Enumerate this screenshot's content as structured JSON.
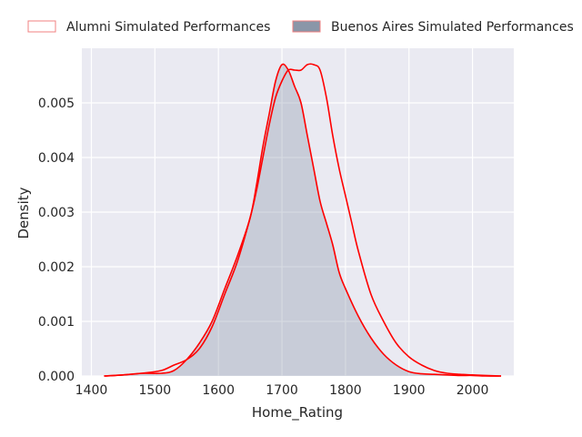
{
  "chart_data": {
    "type": "area",
    "title": "",
    "xlabel": "Home_Rating",
    "ylabel": "Density",
    "xlim": [
      1385,
      2065
    ],
    "ylim": [
      0,
      0.006
    ],
    "xticks": [
      1400,
      1500,
      1600,
      1700,
      1800,
      1900,
      2000
    ],
    "yticks": [
      0.0,
      0.001,
      0.002,
      0.003,
      0.004,
      0.005
    ],
    "ytick_labels": [
      "0.000",
      "0.001",
      "0.002",
      "0.003",
      "0.004",
      "0.005"
    ],
    "grid": true,
    "legend_position": "top",
    "series": [
      {
        "name": "Alumni Simulated Performances",
        "fill": "none",
        "edge_color": "#ff0000",
        "legend_edge": "#f08080",
        "x": [
          1420,
          1450,
          1480,
          1510,
          1530,
          1550,
          1570,
          1590,
          1610,
          1630,
          1650,
          1660,
          1670,
          1680,
          1690,
          1700,
          1710,
          1720,
          1730,
          1740,
          1750,
          1760,
          1770,
          1780,
          1790,
          1800,
          1810,
          1820,
          1840,
          1860,
          1880,
          1900,
          1920,
          1940,
          1960,
          1980,
          2000,
          2020,
          2045
        ],
        "y": [
          0.0,
          2e-05,
          5e-05,
          0.0001,
          0.0002,
          0.0003,
          0.0005,
          0.0009,
          0.0015,
          0.0021,
          0.0029,
          0.0034,
          0.004,
          0.0046,
          0.0051,
          0.0054,
          0.0056,
          0.0056,
          0.0056,
          0.0057,
          0.0057,
          0.0056,
          0.0051,
          0.0044,
          0.0038,
          0.0033,
          0.0028,
          0.0023,
          0.0015,
          0.001,
          0.0006,
          0.00035,
          0.0002,
          0.0001,
          5e-05,
          3e-05,
          2e-05,
          1e-05,
          0.0
        ]
      },
      {
        "name": "Buenos Aires Simulated Performances",
        "fill": "#8a96a8",
        "edge_color": "#ff0000",
        "legend_edge": "#f08080",
        "x": [
          1420,
          1450,
          1480,
          1510,
          1530,
          1550,
          1570,
          1590,
          1610,
          1630,
          1650,
          1660,
          1670,
          1680,
          1690,
          1700,
          1710,
          1720,
          1730,
          1740,
          1750,
          1760,
          1770,
          1780,
          1790,
          1800,
          1820,
          1840,
          1860,
          1880,
          1900,
          1920,
          1940,
          1960,
          1980,
          2000,
          2020,
          2045
        ],
        "y": [
          0.0,
          2e-05,
          5e-05,
          5e-05,
          0.0001,
          0.0003,
          0.0006,
          0.001,
          0.0016,
          0.0022,
          0.0029,
          0.0035,
          0.0042,
          0.0048,
          0.0054,
          0.0057,
          0.0056,
          0.0053,
          0.005,
          0.0044,
          0.0038,
          0.0032,
          0.0028,
          0.0024,
          0.0019,
          0.0016,
          0.0011,
          0.0007,
          0.0004,
          0.0002,
          8e-05,
          4e-05,
          3e-05,
          2e-05,
          1e-05,
          1e-05,
          0.0,
          0.0
        ]
      }
    ]
  }
}
